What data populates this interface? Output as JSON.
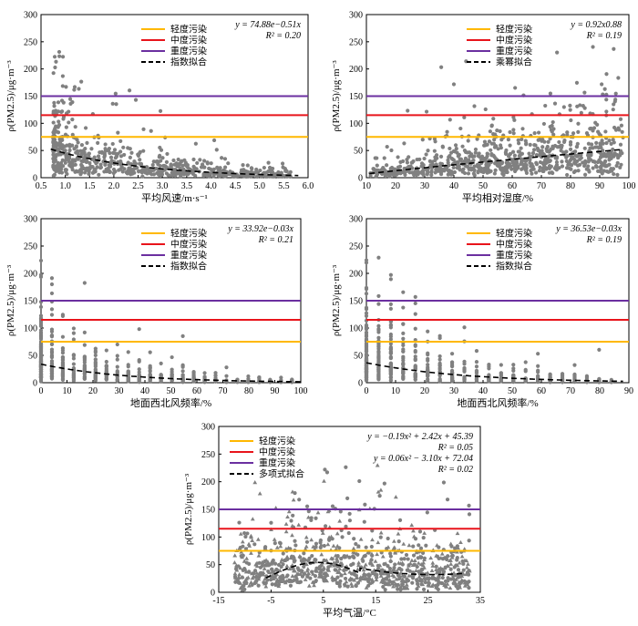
{
  "colors": {
    "light": "#FFB800",
    "moderate": "#E8141B",
    "heavy": "#6B2FA0",
    "point": "#808080",
    "fit": "#000000"
  },
  "legend_labels": {
    "light": "轻度污染",
    "moderate": "中度污染",
    "heavy": "重度污染"
  },
  "chart_data": [
    {
      "id": "p1",
      "type": "scatter",
      "xlabel": "平均风速/m·s⁻¹",
      "ylabel": "ρ(PM2.5)/μg·m⁻³",
      "xlim": [
        0.5,
        6.0
      ],
      "ylim": [
        0,
        300
      ],
      "xticks": [
        "0.5",
        "1.0",
        "1.5",
        "2.0",
        "2.5",
        "3.0",
        "3.5",
        "4.0",
        "4.5",
        "5.0",
        "5.5",
        "6.0"
      ],
      "yticks": [
        "0",
        "50",
        "100",
        "150",
        "200",
        "250",
        "300"
      ],
      "thresholds": {
        "light": 75,
        "moderate": 115,
        "heavy": 150
      },
      "fit_label": "指数拟合",
      "fit": {
        "kind": "exp",
        "a": 74.88,
        "b": -0.51,
        "range": [
          0.7,
          5.8
        ]
      },
      "equation_lines": [
        "y = 74.88e−0.51x",
        "R² = 0.20"
      ],
      "scatter_style": "continuous",
      "x_range": [
        0.7,
        5.8
      ],
      "n_points": 700
    },
    {
      "id": "p2",
      "type": "scatter",
      "xlabel": "平均相对湿度/%",
      "ylabel": "ρ(PM2.5)/μg·m⁻³",
      "xlim": [
        10,
        100
      ],
      "ylim": [
        0,
        300
      ],
      "xticks": [
        "10",
        "20",
        "30",
        "40",
        "50",
        "60",
        "70",
        "80",
        "90",
        "100"
      ],
      "yticks": [
        "0",
        "50",
        "100",
        "150",
        "200",
        "250",
        "300"
      ],
      "thresholds": {
        "light": 75,
        "moderate": 115,
        "heavy": 150
      },
      "fit_label": "乘幂拟合",
      "fit": {
        "kind": "power",
        "a": 0.92,
        "b": 0.88,
        "range": [
          11,
          98
        ]
      },
      "equation_lines": [
        "y = 0.92x0.88",
        "R² = 0.19"
      ],
      "scatter_style": "continuous",
      "x_range": [
        11,
        98
      ],
      "n_points": 800
    },
    {
      "id": "p3",
      "type": "scatter",
      "xlabel": "地面西北风频率/%",
      "ylabel": "ρ(PM2.5)/μg·m⁻³",
      "xlim": [
        0,
        100
      ],
      "ylim": [
        0,
        300
      ],
      "xticks": [
        "0",
        "10",
        "20",
        "30",
        "40",
        "50",
        "60",
        "70",
        "80",
        "90",
        "100"
      ],
      "yticks": [
        "0",
        "50",
        "100",
        "150",
        "200",
        "250",
        "300"
      ],
      "thresholds": {
        "light": 75,
        "moderate": 115,
        "heavy": 150
      },
      "fit_label": "指数拟合",
      "fit": {
        "kind": "exp",
        "a": 33.92,
        "b": -0.03,
        "range": [
          0,
          100
        ]
      },
      "equation_lines": [
        "y = 33.92e−0.03x",
        "R² = 0.21"
      ],
      "scatter_style": "discrete",
      "x_range": [
        0,
        100
      ],
      "n_points": 700
    },
    {
      "id": "p4",
      "type": "scatter",
      "xlabel": "地面西北风频率/%",
      "ylabel": "ρ(PM2.5)/μg·m⁻³",
      "xlim": [
        0,
        90
      ],
      "ylim": [
        0,
        300
      ],
      "xticks": [
        "0",
        "10",
        "20",
        "30",
        "40",
        "50",
        "60",
        "70",
        "80",
        "90"
      ],
      "yticks": [
        "0",
        "50",
        "100",
        "150",
        "200",
        "250",
        "300"
      ],
      "thresholds": {
        "light": 75,
        "moderate": 115,
        "heavy": 150
      },
      "fit_label": "指数拟合",
      "fit": {
        "kind": "exp",
        "a": 36.53,
        "b": -0.03,
        "range": [
          0,
          88
        ]
      },
      "equation_lines": [
        "y = 36.53e−0.03x",
        "R² = 0.19"
      ],
      "scatter_style": "discrete",
      "x_range": [
        0,
        88
      ],
      "n_points": 650
    },
    {
      "id": "p5",
      "type": "scatter",
      "xlabel": "平均气温/°C",
      "ylabel": "ρ(PM2.5)/μg·m⁻³",
      "xlim": [
        -15,
        35
      ],
      "ylim": [
        0,
        300
      ],
      "xticks": [
        "-15",
        "-5",
        "5",
        "15",
        "25",
        "35"
      ],
      "yticks": [
        "0",
        "50",
        "100",
        "150",
        "200",
        "250",
        "300"
      ],
      "thresholds": {
        "light": 75,
        "moderate": 115,
        "heavy": 150
      },
      "fit_label": "多项式拟合",
      "fit": {
        "kind": "poly_piecewise",
        "segments": [
          {
            "range": [
              -6,
              12
            ],
            "c": [
              -0.19,
              2.42,
              45.39
            ]
          },
          {
            "range": [
              12,
              32
            ],
            "c": [
              0.06,
              -3.1,
              72.04
            ]
          }
        ]
      },
      "equation_lines": [
        "y = −0.19x² + 2.42x + 45.39",
        "R² = 0.05",
        "y = 0.06x² − 3.10x + 72.04",
        "R² = 0.02"
      ],
      "scatter_style": "temp",
      "x_range": [
        -12,
        33
      ],
      "n_points": 900
    }
  ]
}
